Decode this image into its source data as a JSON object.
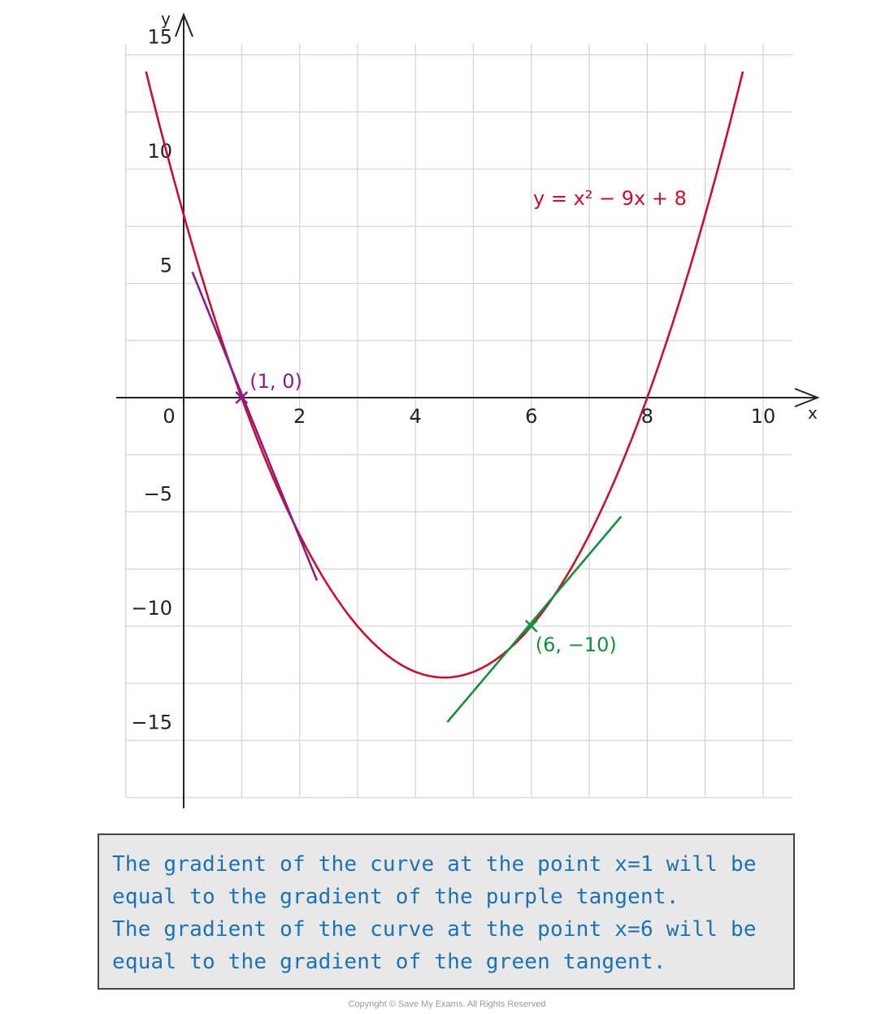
{
  "chart_data": {
    "type": "line",
    "xlabel": "x",
    "ylabel": "y",
    "xlim": [
      -1,
      10.5
    ],
    "ylim": [
      -17.5,
      15.5
    ],
    "xticks": [
      0,
      2,
      4,
      6,
      8,
      10
    ],
    "yticks": [
      15,
      10,
      5,
      -5,
      -10,
      -15
    ],
    "xtick_labels": [
      "0",
      "2",
      "4",
      "6",
      "8",
      "10"
    ],
    "ytick_labels": [
      "15",
      "10",
      "5",
      "−5",
      "−10",
      "−15"
    ],
    "grid": true,
    "series": [
      {
        "name": "y = x² − 9x + 8",
        "kind": "curve",
        "formula": "x^2 - 9x + 8",
        "x_range": [
          -0.65,
          9.65
        ],
        "color": "#c8102e"
      },
      {
        "kind": "line",
        "points": [
          [
            0.15,
            5.5
          ],
          [
            2.3,
            -8.0
          ]
        ],
        "color": "#8b1a8b"
      },
      {
        "kind": "line",
        "points": [
          [
            4.55,
            -14.2
          ],
          [
            7.55,
            -5.2
          ]
        ],
        "color": "#12913a"
      }
    ],
    "annotations": [
      {
        "text": "(1, 0)",
        "x": 1,
        "y": 0,
        "color": "#8b1a8b"
      },
      {
        "text": "(6, −10)",
        "x": 6,
        "y": -10,
        "color": "#12913a"
      }
    ]
  },
  "note": {
    "lines": [
      "The gradient of the curve at the point x=1 will be",
      "equal to the gradient of the purple tangent.",
      "The gradient of the curve at the point x=6 will be",
      "equal to the gradient of the green tangent."
    ]
  },
  "footer": {
    "copyright": "Copyright © Save My Exams. All Rights Reserved"
  },
  "colors": {
    "grid": "#d6d6d6",
    "axis": "#222222",
    "curve": "#c8102e",
    "purple": "#8b1a8b",
    "green": "#12913a",
    "note_text": "#1a72b8"
  }
}
